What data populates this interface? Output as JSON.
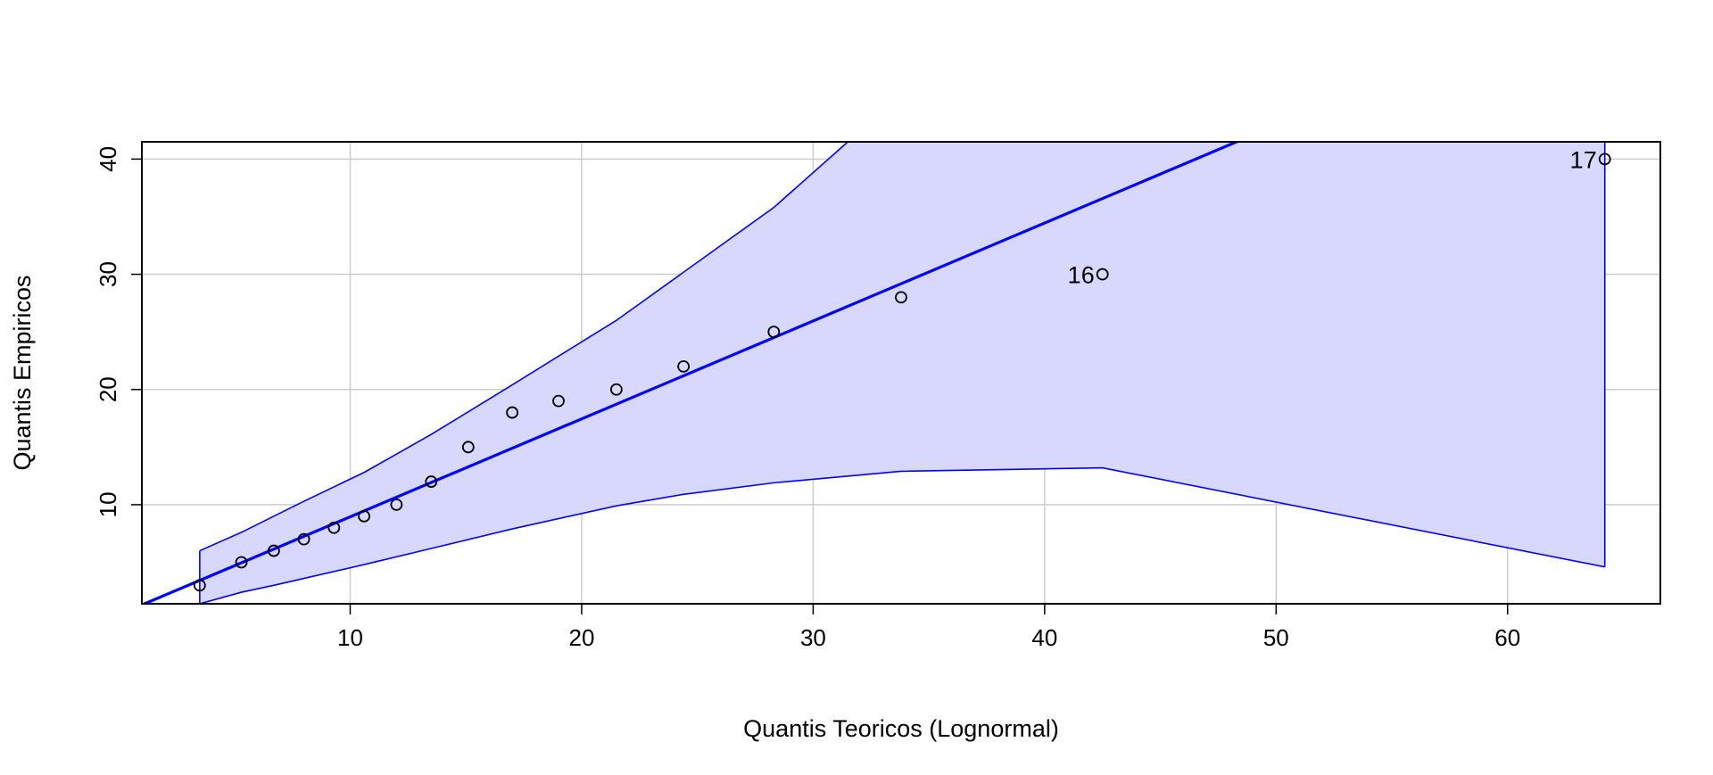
{
  "chart_data": {
    "type": "scatter",
    "title": "",
    "xlabel": "Quantis Teoricos (Lognormal)",
    "ylabel": "Quantis Empiricos",
    "xlim": [
      1.0,
      66.6
    ],
    "ylim": [
      1.4,
      41.5
    ],
    "xticks": [
      10,
      20,
      30,
      40,
      50,
      60
    ],
    "yticks": [
      10,
      20,
      30,
      40
    ],
    "grid": true,
    "colors": {
      "points": "#000000",
      "line": "#0000ff",
      "band_fill": "#d8d8ff",
      "band_edge": "#0000ff",
      "grid": "#cccccc",
      "frame": "#000000"
    },
    "points": [
      {
        "x": 3.5,
        "y": 3
      },
      {
        "x": 5.3,
        "y": 5
      },
      {
        "x": 6.7,
        "y": 6
      },
      {
        "x": 8.0,
        "y": 7
      },
      {
        "x": 9.3,
        "y": 8
      },
      {
        "x": 10.6,
        "y": 9
      },
      {
        "x": 12.0,
        "y": 10
      },
      {
        "x": 13.5,
        "y": 12
      },
      {
        "x": 15.1,
        "y": 15
      },
      {
        "x": 17.0,
        "y": 18
      },
      {
        "x": 19.0,
        "y": 19
      },
      {
        "x": 21.5,
        "y": 20
      },
      {
        "x": 24.4,
        "y": 22
      },
      {
        "x": 28.3,
        "y": 25
      },
      {
        "x": 33.8,
        "y": 28
      },
      {
        "x": 42.5,
        "y": 30,
        "label": "16"
      },
      {
        "x": 64.2,
        "y": 40,
        "label": "17"
      }
    ],
    "reference_line": {
      "intercept": 0.45,
      "slope": 0.85
    },
    "confidence_band": {
      "upper": [
        [
          3.5,
          6.0
        ],
        [
          5.3,
          7.6
        ],
        [
          6.7,
          9.0
        ],
        [
          8.0,
          10.3
        ],
        [
          10.6,
          12.8
        ],
        [
          13.5,
          16.1
        ],
        [
          17.0,
          20.4
        ],
        [
          21.5,
          26.0
        ],
        [
          28.3,
          35.8
        ],
        [
          31.5,
          41.5
        ]
      ],
      "lower": [
        [
          3.5,
          1.4
        ],
        [
          5.3,
          2.4
        ],
        [
          6.7,
          3.0
        ],
        [
          8.0,
          3.6
        ],
        [
          10.6,
          4.8
        ],
        [
          13.5,
          6.2
        ],
        [
          17.0,
          7.9
        ],
        [
          21.5,
          9.9
        ],
        [
          24.4,
          10.9
        ],
        [
          28.3,
          11.9
        ],
        [
          33.8,
          12.9
        ],
        [
          42.5,
          13.2
        ],
        [
          64.2,
          4.6
        ]
      ],
      "right_edge_top": 41.5
    }
  }
}
